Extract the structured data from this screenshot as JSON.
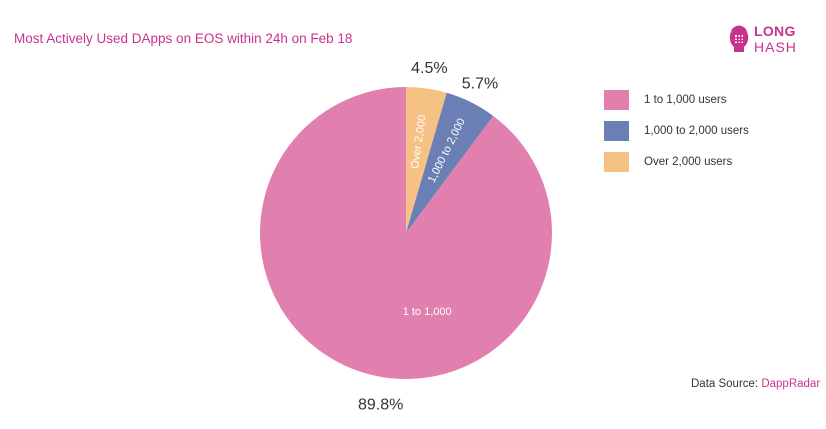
{
  "title": "Most Actively Used DApps on EOS within 24h on Feb 18",
  "logo": {
    "line1": "LONG",
    "line2": "HASH"
  },
  "source": {
    "prefix": "Data Source: ",
    "name": "DappRadar"
  },
  "chart_data": {
    "type": "pie",
    "title": "Most Actively Used DApps on EOS within 24h on Feb 18",
    "start_angle_deg": 0,
    "direction": "clockwise",
    "slices": [
      {
        "label": "Over 2,000",
        "legend": "Over 2,000 users",
        "value": 4.5,
        "value_label": "4.5%",
        "color": "#f6c185"
      },
      {
        "label": "1,000 to 2,000",
        "legend": "1,000 to 2,000 users",
        "value": 5.7,
        "value_label": "5.7%",
        "color": "#6a7fb4"
      },
      {
        "label": "1 to 1,000",
        "legend": "1 to 1,000 users",
        "value": 89.8,
        "value_label": "89.8%",
        "color": "#e180ae"
      }
    ],
    "legend_order": [
      2,
      1,
      0
    ],
    "legend_position": "right"
  }
}
